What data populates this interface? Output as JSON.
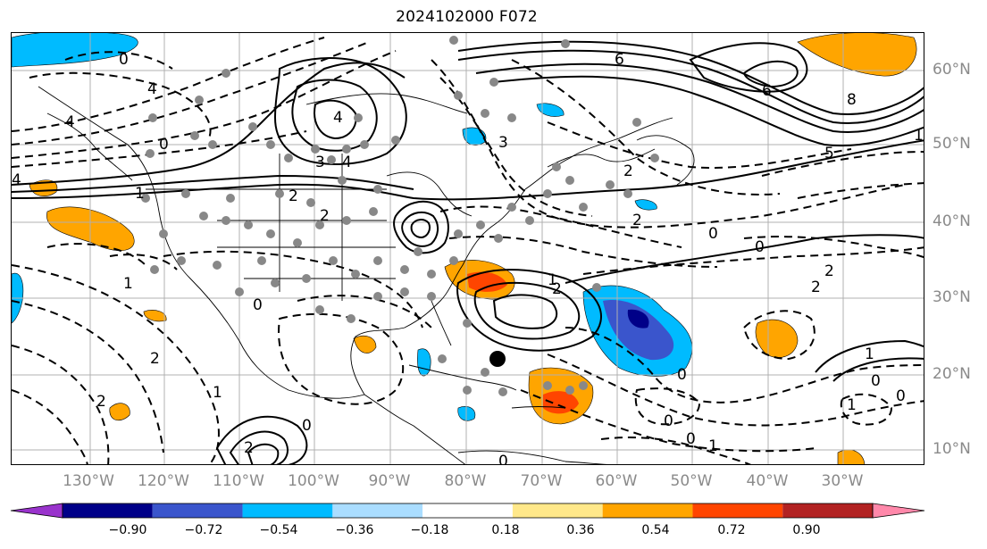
{
  "title": "2024102000 F072",
  "lon_labels": [
    "130°W",
    "120°W",
    "110°W",
    "100°W",
    "90°W",
    "80°W",
    "70°W",
    "60°W",
    "50°W",
    "40°W",
    "30°W"
  ],
  "lat_labels": [
    "60°N",
    "50°N",
    "40°N",
    "30°N",
    "20°N",
    "10°N"
  ],
  "colorbar": {
    "ticks": [
      "−0.90",
      "−0.72",
      "−0.54",
      "−0.36",
      "−0.18",
      "0.18",
      "0.36",
      "0.54",
      "0.72",
      "0.90"
    ],
    "colors": [
      "#9933cc",
      "#000088",
      "#3a55cc",
      "#00bbff",
      "#aaddff",
      "#ffffff",
      "#ffe88a",
      "#ffa500",
      "#ff4500",
      "#b22222",
      "#ff88aa"
    ]
  },
  "contour_labels": [
    "4",
    "4",
    "0",
    "0",
    "4",
    "6",
    "6",
    "8",
    "5",
    "2",
    "2",
    "3",
    "3",
    "4",
    "4",
    "2",
    "2",
    "0",
    "0",
    "1",
    "1",
    "2",
    "2",
    "2",
    "2",
    "1",
    "0",
    "0",
    "0",
    "0",
    "0",
    "0",
    "1",
    "2",
    "1",
    "1",
    "0",
    "1",
    "2",
    "0",
    "1"
  ],
  "legend_colors": {
    "land_line": "#000000",
    "grid": "#b0b0b0",
    "station": "#888888",
    "storm_marker": "#000000"
  }
}
